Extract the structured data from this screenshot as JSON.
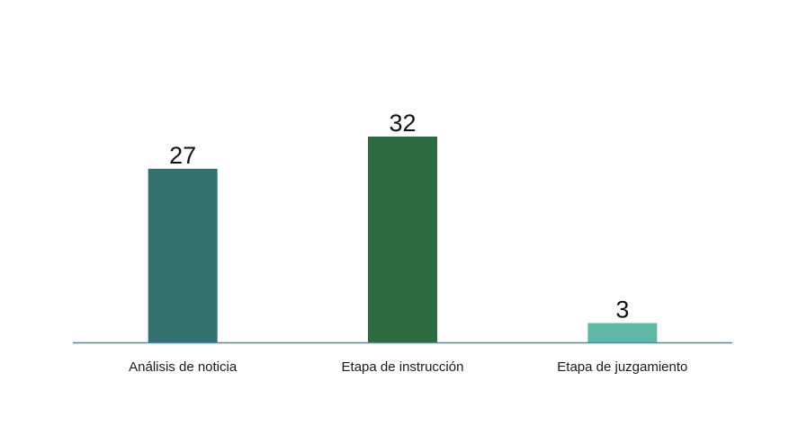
{
  "chart_data": {
    "type": "bar",
    "categories": [
      "Análisis de noticia",
      "Etapa de instrucción",
      "Etapa de juzgamiento"
    ],
    "values": [
      27,
      32,
      3
    ],
    "colors": [
      "#33726f",
      "#2e6a3f",
      "#5fb8a5"
    ],
    "axis_color": "#4a8ab0",
    "ylim": [
      0,
      32
    ],
    "show_data_labels": true,
    "grid": false,
    "legend": "none"
  }
}
